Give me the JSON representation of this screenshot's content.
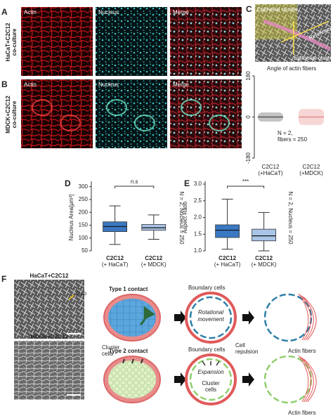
{
  "panels": {
    "A": {
      "label": "A",
      "row_label": [
        "HaCaT+C2C12",
        "co-culture"
      ],
      "columns": [
        "Actin",
        "Nucleus",
        "Merge"
      ]
    },
    "B": {
      "label": "B",
      "row_label": [
        "MDCK+C2C12",
        "co-culture"
      ],
      "columns": [
        "Actin",
        "Nucleus",
        "Merge"
      ]
    },
    "C": {
      "label": "C",
      "image_labels": [
        "Epithelial cluster",
        "Reference line",
        "Epithelial cluster"
      ],
      "title": "Angle of actin fibers",
      "ylim": [
        -180,
        180
      ],
      "yticks": [
        180,
        0,
        -180
      ],
      "categories": [
        [
          "C2C12",
          "(+HaCaT)"
        ],
        [
          "C2C12",
          "(+MDCK)"
        ]
      ],
      "colors": [
        "#555555",
        "#e58a8a"
      ],
      "q1": [
        -20,
        -35
      ],
      "median": [
        0,
        0
      ],
      "q3": [
        20,
        35
      ],
      "annotation": [
        "N = 2,",
        "fibers = 250"
      ]
    },
    "D": {
      "label": "D",
      "ylabel": "Nucleus Area[μm²]",
      "ylim": [
        50,
        310
      ],
      "yticks": [
        50,
        100,
        150,
        200,
        250,
        300
      ],
      "categories": [
        [
          "C2C12",
          "(+ HaCaT)"
        ],
        [
          "C2C12",
          "(+ MDCK)"
        ]
      ],
      "colors": [
        "#3a78c2",
        "#a9c4e6"
      ],
      "whisker_low": [
        75,
        95
      ],
      "q1": [
        125,
        130
      ],
      "median": [
        145,
        140
      ],
      "q3": [
        163,
        153
      ],
      "whisker_high": [
        225,
        190
      ],
      "significance": "n.s",
      "annotation": "N = 2, Nucleus = 250"
    },
    "E": {
      "label": "E",
      "ylabel": "Aspect Ratio",
      "ylim": [
        1.0,
        3.0
      ],
      "yticks": [
        {
          "value": 1.0,
          "label": "1.0"
        },
        1.5,
        {
          "value": 2.0,
          "label": "2.0"
        },
        2.5,
        {
          "value": 3.0,
          "label": "3.0"
        }
      ],
      "categories": [
        [
          "C2C12",
          "(+ HaCaT)"
        ],
        [
          "C2C12",
          "(+ MDCK)"
        ]
      ],
      "colors": [
        "#3a78c2",
        "#a9c4e6"
      ],
      "whisker_low": [
        1.05,
        1.0
      ],
      "q1": [
        1.4,
        1.3
      ],
      "median": [
        1.62,
        1.45
      ],
      "q3": [
        1.78,
        1.65
      ],
      "whisker_high": [
        2.55,
        2.15
      ],
      "significance": "***",
      "annotation": "N = 2, Nucleus = 250"
    },
    "F": {
      "label": "F",
      "images": [
        "HaCaT+C2C12",
        "MDCK+C2C12"
      ],
      "gap": "Gap",
      "type1": {
        "title": "Type 1 contact",
        "boundary": "Boundary cells",
        "movement": [
          "Rotational",
          "movement"
        ],
        "repulsion": [
          "Cell",
          "repulsion"
        ],
        "cluster": [
          "Cluster",
          "cells"
        ],
        "fibers": "Actin fibers"
      },
      "type2": {
        "title": "Type 2 contact",
        "boundary": "Boundary cells",
        "expansion": "Expansion",
        "cluster": [
          "Cluster",
          "cells"
        ],
        "fibers": "Actin fibers"
      }
    }
  }
}
